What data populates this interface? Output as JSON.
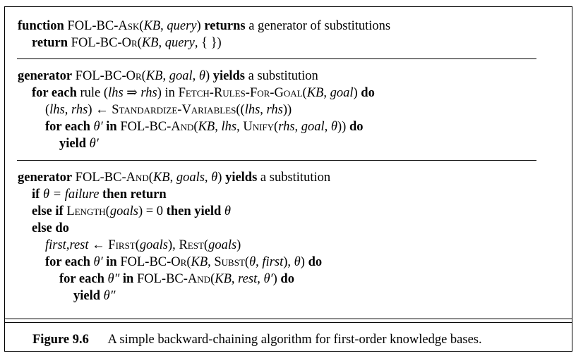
{
  "algorithm": {
    "block1": {
      "l1": {
        "kw_function": "function",
        "fn_name": "FOL-BC-Ask",
        "args_open": "(",
        "arg_kb": "KB",
        "sep": ", ",
        "arg_query": "query",
        "args_close": ")",
        "kw_returns": "returns",
        "rest": "a generator of substitutions"
      },
      "l2": {
        "kw_return": "return",
        "fn_name": "FOL-BC-Or",
        "args_open": "(",
        "arg_kb": "KB",
        "sep1": ", ",
        "arg_query": "query",
        "sep2": ", ",
        "empty_set": "{ }",
        "args_close": ")"
      }
    },
    "block2": {
      "l1": {
        "kw_generator": "generator",
        "fn_name": "FOL-BC-Or",
        "args_open": "(",
        "arg_kb": "KB",
        "sep1": ", ",
        "arg_goal": "goal",
        "sep2": ", ",
        "theta": "θ",
        "args_close": ")",
        "kw_yields": "yields",
        "rest": "a substitution"
      },
      "l2": {
        "kw_for_each": "for each",
        "rule_text": "rule (",
        "lhs": "lhs",
        "arrow": " ⇒ ",
        "rhs": "rhs",
        "paren_in": ") in ",
        "fn_fetch": "Fetch-Rules-For-Goal",
        "args_open": "(",
        "arg_kb": "KB",
        "sep": ", ",
        "arg_goal": "goal",
        "args_close": ")",
        "kw_do": "do"
      },
      "l3": {
        "open": "(",
        "lhs": "lhs",
        "sep": ", ",
        "rhs": "rhs",
        "close_arrow": ") ← ",
        "fn_std": "Standardize-Variables",
        "open2": "((",
        "lhs2": "lhs",
        "sep2": ", ",
        "rhs2": "rhs",
        "close2": "))"
      },
      "l4": {
        "kw_for_each": "for each",
        "theta_prime": " θ′ ",
        "kw_in": "in",
        "fn_and": "FOL-BC-And",
        "open": "(",
        "arg_kb": "KB",
        "sep1": ", ",
        "lhs": "lhs",
        "sep2": ", ",
        "fn_unify": "Unify",
        "open2": "(",
        "rhs": "rhs",
        "sep3": ", ",
        "goal": "goal",
        "sep4": ", ",
        "theta": "θ",
        "close2": "))",
        "kw_do": "do"
      },
      "l5": {
        "kw_yield": "yield",
        "theta_prime": " θ′"
      }
    },
    "block3": {
      "l1": {
        "kw_generator": "generator",
        "fn_name": "FOL-BC-And",
        "args_open": "(",
        "arg_kb": "KB",
        "sep1": ", ",
        "arg_goals": "goals",
        "sep2": ", ",
        "theta": "θ",
        "args_close": ")",
        "kw_yields": "yields",
        "rest": "a substitution"
      },
      "l2": {
        "kw_if": "if",
        "cond": " θ = ",
        "failure": "failure",
        "kw_then_return": "then return"
      },
      "l3": {
        "kw_else_if": "else if",
        "fn_length": "Length",
        "open": "(",
        "goals": "goals",
        "close_eq": ") = 0",
        "kw_then_yield": "then yield",
        "theta": " θ"
      },
      "l4": {
        "kw_else_do": "else do"
      },
      "l5": {
        "first": "first",
        "comma": ",",
        "rest": "rest",
        "arrow": " ← ",
        "fn_first": "First",
        "open1": "(",
        "goals1": "goals",
        "close1": "), ",
        "fn_rest": "Rest",
        "open2": "(",
        "goals2": "goals",
        "close2": ")"
      },
      "l6": {
        "kw_for_each": "for each",
        "theta_prime": " θ′ ",
        "kw_in": "in",
        "fn_or": "FOL-BC-Or",
        "open": "(",
        "arg_kb": "KB",
        "sep1": ", ",
        "fn_subst": "Subst",
        "open2": "(",
        "theta": "θ",
        "sep2": ", ",
        "first": "first",
        "close2": "), ",
        "theta2": "θ",
        "close": ")",
        "kw_do": "do"
      },
      "l7": {
        "kw_for_each": "for each",
        "theta_dprime": " θ″ ",
        "kw_in": "in",
        "fn_and": "FOL-BC-And",
        "open": "(",
        "arg_kb": "KB",
        "sep1": ", ",
        "rest": "rest",
        "sep2": ", ",
        "theta_prime": "θ′",
        "close": ")",
        "kw_do": "do"
      },
      "l8": {
        "kw_yield": "yield",
        "theta_dprime": " θ″"
      }
    }
  },
  "caption": {
    "label": "Figure 9.6",
    "text": "A simple backward-chaining algorithm for first-order knowledge bases."
  }
}
